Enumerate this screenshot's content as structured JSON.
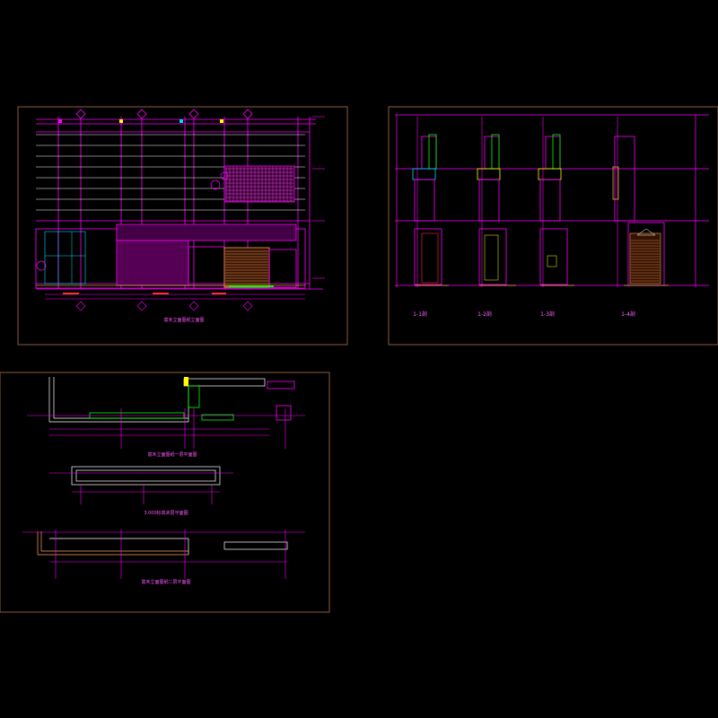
{
  "colors": {
    "background": "#000000",
    "frame": "#8b5a3c",
    "magenta": "#ff00ff",
    "white": "#ffffff",
    "cyan": "#00d8ff",
    "green": "#00ff00",
    "yellow": "#ffff00",
    "orange": "#ffa060",
    "red": "#ff3030"
  },
  "sheets": {
    "elevation": {
      "title": "富禾立面图纸立面图"
    },
    "sections": {
      "labels": [
        "1-1剖",
        "1-2剖",
        "1-3剖",
        "1-4剖"
      ]
    },
    "plans": {
      "title_top": "富禾立面图纸一层平面图",
      "title_middle": "3.000标高夹层平面图",
      "title_bottom": "富禾立面图纸二层平面图"
    }
  }
}
